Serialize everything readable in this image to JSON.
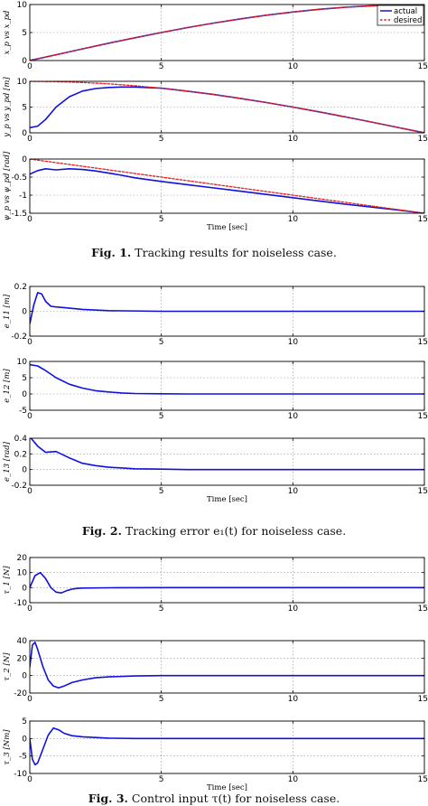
{
  "figures": [
    {
      "caption_label": "Fig. 1.",
      "caption_text": " Tracking results for noiseless case.",
      "xlabel": "Time [sec]",
      "legend": [
        "actual",
        "desired"
      ]
    },
    {
      "caption_label": "Fig. 2.",
      "caption_text": " Tracking error e₁(t) for noiseless case.",
      "xlabel": "Time [sec]"
    },
    {
      "caption_label": "Fig. 3.",
      "caption_text": " Control input τ(t) for noiseless case.",
      "xlabel": "Time [sec]"
    }
  ],
  "colors": {
    "actual": "#1010e0",
    "desired": "#e02020"
  },
  "chart_data": [
    {
      "type": "line",
      "ylabel": "x_p vs x_pd",
      "xlim": [
        0,
        15
      ],
      "ylim": [
        0,
        10
      ],
      "xticks": [
        0,
        5,
        10,
        15
      ],
      "yticks": [
        0,
        5,
        10
      ],
      "grid": true,
      "legend_position": "top-right",
      "series": [
        {
          "name": "actual",
          "x": [
            0,
            1,
            2,
            3,
            4,
            5,
            6,
            7,
            8,
            9,
            10,
            11,
            12,
            13,
            14,
            15
          ],
          "y": [
            0,
            1.04,
            2.08,
            3.09,
            4.07,
            5.0,
            5.88,
            6.69,
            7.43,
            8.09,
            8.66,
            9.14,
            9.51,
            9.78,
            9.95,
            10.0
          ]
        },
        {
          "name": "desired",
          "x": [
            0,
            1,
            2,
            3,
            4,
            5,
            6,
            7,
            8,
            9,
            10,
            11,
            12,
            13,
            14,
            15
          ],
          "y": [
            0,
            1.04,
            2.08,
            3.09,
            4.07,
            5.0,
            5.88,
            6.69,
            7.43,
            8.09,
            8.66,
            9.14,
            9.51,
            9.78,
            9.95,
            10.0
          ]
        }
      ]
    },
    {
      "type": "line",
      "ylabel": "y_p vs y_pd [m]",
      "xlim": [
        0,
        15
      ],
      "ylim": [
        0,
        10
      ],
      "xticks": [
        0,
        5,
        10,
        15
      ],
      "yticks": [
        0,
        5,
        10
      ],
      "grid": true,
      "series": [
        {
          "name": "actual",
          "x": [
            0,
            0.3,
            0.6,
            1,
            1.5,
            2,
            2.5,
            3,
            3.5,
            4,
            5,
            6,
            7,
            8,
            9,
            10,
            11,
            12,
            13,
            14,
            15
          ],
          "y": [
            1,
            1.3,
            2.6,
            5.0,
            7.0,
            8.1,
            8.6,
            8.8,
            8.9,
            8.9,
            8.66,
            8.09,
            7.43,
            6.69,
            5.88,
            5.0,
            4.07,
            3.09,
            2.08,
            1.04,
            0
          ]
        },
        {
          "name": "desired",
          "x": [
            0,
            1,
            2,
            3,
            4,
            5,
            6,
            7,
            8,
            9,
            10,
            11,
            12,
            13,
            14,
            15
          ],
          "y": [
            10,
            9.95,
            9.78,
            9.51,
            9.14,
            8.66,
            8.09,
            7.43,
            6.69,
            5.88,
            5.0,
            4.07,
            3.09,
            2.08,
            1.04,
            0
          ]
        }
      ]
    },
    {
      "type": "line",
      "ylabel": "ψ_p vs ψ_pd [rad]",
      "xlim": [
        0,
        15
      ],
      "ylim": [
        -1.5,
        0
      ],
      "xticks": [
        0,
        5,
        10,
        15
      ],
      "yticks": [
        0,
        -0.5,
        -1,
        -1.5
      ],
      "grid": true,
      "series": [
        {
          "name": "actual",
          "x": [
            0,
            0.3,
            0.6,
            1,
            1.5,
            2,
            2.5,
            3,
            3.5,
            4,
            5,
            6,
            7,
            8,
            9,
            10,
            11,
            12,
            13,
            14,
            15
          ],
          "y": [
            -0.42,
            -0.32,
            -0.27,
            -0.3,
            -0.27,
            -0.29,
            -0.33,
            -0.39,
            -0.45,
            -0.52,
            -0.62,
            -0.71,
            -0.8,
            -0.89,
            -0.98,
            -1.07,
            -1.16,
            -1.25,
            -1.33,
            -1.41,
            -1.5
          ]
        },
        {
          "name": "desired",
          "x": [
            0,
            1,
            2,
            3,
            4,
            5,
            6,
            7,
            8,
            9,
            10,
            11,
            12,
            13,
            14,
            15
          ],
          "y": [
            0,
            -0.1,
            -0.2,
            -0.3,
            -0.4,
            -0.5,
            -0.6,
            -0.7,
            -0.8,
            -0.9,
            -1.0,
            -1.1,
            -1.2,
            -1.3,
            -1.4,
            -1.5
          ]
        }
      ]
    },
    {
      "type": "line",
      "ylabel": "e_11 [m]",
      "xlim": [
        0,
        15
      ],
      "ylim": [
        -0.2,
        0.2
      ],
      "xticks": [
        0,
        5,
        10,
        15
      ],
      "yticks": [
        0.2,
        0,
        -0.2
      ],
      "grid": true,
      "series": [
        {
          "name": "e_11",
          "x": [
            0,
            0.15,
            0.3,
            0.45,
            0.6,
            0.8,
            1,
            1.3,
            2,
            3,
            5,
            8,
            15
          ],
          "y": [
            -0.1,
            0.05,
            0.15,
            0.14,
            0.08,
            0.04,
            0.035,
            0.03,
            0.015,
            0.005,
            0,
            0,
            0
          ]
        }
      ]
    },
    {
      "type": "line",
      "ylabel": "e_12 [m]",
      "xlim": [
        0,
        15
      ],
      "ylim": [
        -5,
        10
      ],
      "xticks": [
        0,
        5,
        10,
        15
      ],
      "yticks": [
        10,
        5,
        0,
        -5
      ],
      "grid": true,
      "series": [
        {
          "name": "e_12",
          "x": [
            0,
            0.3,
            0.6,
            1,
            1.5,
            2,
            2.5,
            3,
            3.5,
            4,
            5,
            6,
            15
          ],
          "y": [
            9,
            8.6,
            7.2,
            5.0,
            3.0,
            1.8,
            1.0,
            0.6,
            0.3,
            0.15,
            0.05,
            0,
            0
          ]
        }
      ]
    },
    {
      "type": "line",
      "ylabel": "e_13 [rad]",
      "xlim": [
        0,
        15
      ],
      "ylim": [
        -0.2,
        0.4
      ],
      "xticks": [
        0,
        5,
        10,
        15
      ],
      "yticks": [
        0.4,
        0.2,
        0,
        -0.2
      ],
      "grid": true,
      "series": [
        {
          "name": "e_13",
          "x": [
            0,
            0.3,
            0.6,
            1,
            1.5,
            2,
            2.5,
            3,
            3.5,
            4,
            5,
            6,
            15
          ],
          "y": [
            0.42,
            0.3,
            0.22,
            0.23,
            0.15,
            0.08,
            0.05,
            0.03,
            0.02,
            0.01,
            0.005,
            0,
            0
          ]
        }
      ]
    },
    {
      "type": "line",
      "ylabel": "τ_1 [N]",
      "xlim": [
        0,
        15
      ],
      "ylim": [
        -10,
        20
      ],
      "xticks": [
        0,
        5,
        10,
        15
      ],
      "yticks": [
        20,
        10,
        0,
        -10
      ],
      "grid": true,
      "series": [
        {
          "name": "tau_1",
          "x": [
            0,
            0.2,
            0.4,
            0.6,
            0.8,
            1,
            1.2,
            1.4,
            1.6,
            1.8,
            2,
            3,
            5,
            15
          ],
          "y": [
            0,
            8,
            10,
            6,
            0,
            -3,
            -3.5,
            -2,
            -1,
            -0.5,
            -0.3,
            -0.1,
            0,
            0
          ]
        }
      ]
    },
    {
      "type": "line",
      "ylabel": "τ_2 [N]",
      "xlim": [
        0,
        15
      ],
      "ylim": [
        -20,
        40
      ],
      "xticks": [
        0,
        5,
        10,
        15
      ],
      "yticks": [
        40,
        20,
        0,
        -20
      ],
      "grid": true,
      "series": [
        {
          "name": "tau_2",
          "x": [
            0,
            0.1,
            0.2,
            0.3,
            0.5,
            0.7,
            0.9,
            1.1,
            1.3,
            1.6,
            2,
            2.5,
            3,
            4,
            5,
            15
          ],
          "y": [
            10,
            35,
            38,
            30,
            10,
            -5,
            -12,
            -14,
            -12,
            -8,
            -5,
            -2.5,
            -1.5,
            -0.5,
            0,
            0
          ]
        }
      ]
    },
    {
      "type": "line",
      "ylabel": "τ_3 [Nm]",
      "xlim": [
        0,
        15
      ],
      "ylim": [
        -10,
        5
      ],
      "xticks": [
        0,
        5,
        10,
        15
      ],
      "yticks": [
        5,
        0,
        -5,
        -10
      ],
      "grid": true,
      "series": [
        {
          "name": "tau_3",
          "x": [
            0,
            0.1,
            0.2,
            0.3,
            0.5,
            0.7,
            0.9,
            1.1,
            1.3,
            1.6,
            2,
            2.5,
            3,
            4,
            15
          ],
          "y": [
            0,
            -6,
            -7.5,
            -7,
            -3,
            1,
            3,
            2.5,
            1.5,
            0.8,
            0.5,
            0.3,
            0.1,
            0,
            0
          ]
        }
      ]
    }
  ]
}
